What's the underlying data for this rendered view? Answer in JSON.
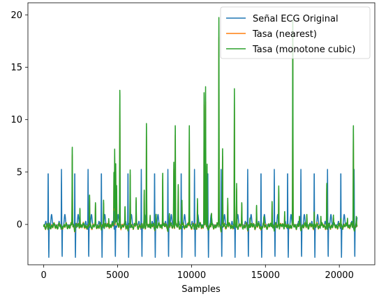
{
  "chart_data": {
    "type": "line",
    "title": "",
    "xlabel": "Samples",
    "ylabel": "",
    "xlim": [
      -1070,
      22400
    ],
    "ylim": [
      -3.85,
      21.15
    ],
    "x_ticks": [
      0,
      5000,
      10000,
      15000,
      20000
    ],
    "y_ticks": [
      0,
      5,
      10,
      15,
      20
    ],
    "grid": false,
    "legend_position": "upper right",
    "beats": [
      300,
      1200,
      2100,
      3000,
      3900,
      4800,
      5700,
      6600,
      7500,
      8400,
      9300,
      10200,
      11100,
      12000,
      12900,
      13800,
      14700,
      15600,
      16500,
      17400,
      18300,
      19200,
      20100,
      21000
    ],
    "ecg_peak": 5.3,
    "ecg_trough": -2.7,
    "series": [
      {
        "name": "Señal ECG Original",
        "color": "#1f77b4",
        "x_range": [
          0,
          21200
        ],
        "y_range": [
          -2.7,
          5.4
        ]
      },
      {
        "name": "Tasa (nearest)",
        "color": "#ff7f0e",
        "x_range": [
          0,
          21200
        ],
        "y_range": [
          -0.45,
          19.8
        ]
      },
      {
        "name": "Tasa (monotone cubic)",
        "color": "#2ca02c",
        "x_range": [
          0,
          21200
        ],
        "y_range": [
          -0.5,
          20.0
        ],
        "spikes": [
          [
            1930,
            7.7
          ],
          [
            2450,
            1.9
          ],
          [
            3100,
            3.1
          ],
          [
            3500,
            2.1
          ],
          [
            4050,
            2.6
          ],
          [
            4400,
            0.9
          ],
          [
            4750,
            5.4
          ],
          [
            4800,
            7.6
          ],
          [
            4870,
            6.1
          ],
          [
            4930,
            4.0
          ],
          [
            5150,
            13.1
          ],
          [
            5500,
            1.8
          ],
          [
            5850,
            5.3
          ],
          [
            6250,
            2.6
          ],
          [
            6800,
            3.5
          ],
          [
            6950,
            9.7
          ],
          [
            7200,
            1.2
          ],
          [
            7600,
            1.2
          ],
          [
            8050,
            5.3
          ],
          [
            8500,
            1.2
          ],
          [
            8800,
            6.2
          ],
          [
            8900,
            9.7
          ],
          [
            9100,
            4.0
          ],
          [
            9350,
            2.6
          ],
          [
            9850,
            9.7
          ],
          [
            10400,
            2.6
          ],
          [
            10850,
            13.1
          ],
          [
            10950,
            13.1
          ],
          [
            11050,
            6.0
          ],
          [
            11350,
            1.2
          ],
          [
            11850,
            20.0
          ],
          [
            12100,
            7.4
          ],
          [
            12450,
            2.6
          ],
          [
            12900,
            13.1
          ],
          [
            13050,
            3.9
          ],
          [
            13400,
            2.1
          ],
          [
            13950,
            0.9
          ],
          [
            14400,
            2.0
          ],
          [
            14900,
            0.7
          ],
          [
            15450,
            2.6
          ],
          [
            15900,
            3.9
          ],
          [
            16300,
            1.5
          ],
          [
            16850,
            19.6
          ],
          [
            17300,
            0.8
          ],
          [
            17800,
            1.2
          ],
          [
            18300,
            1.6
          ],
          [
            18750,
            1.0
          ],
          [
            19150,
            4.0
          ],
          [
            19600,
            0.9
          ],
          [
            20100,
            1.0
          ],
          [
            20550,
            0.9
          ],
          [
            20950,
            9.7
          ],
          [
            21150,
            0.7
          ]
        ]
      }
    ]
  }
}
